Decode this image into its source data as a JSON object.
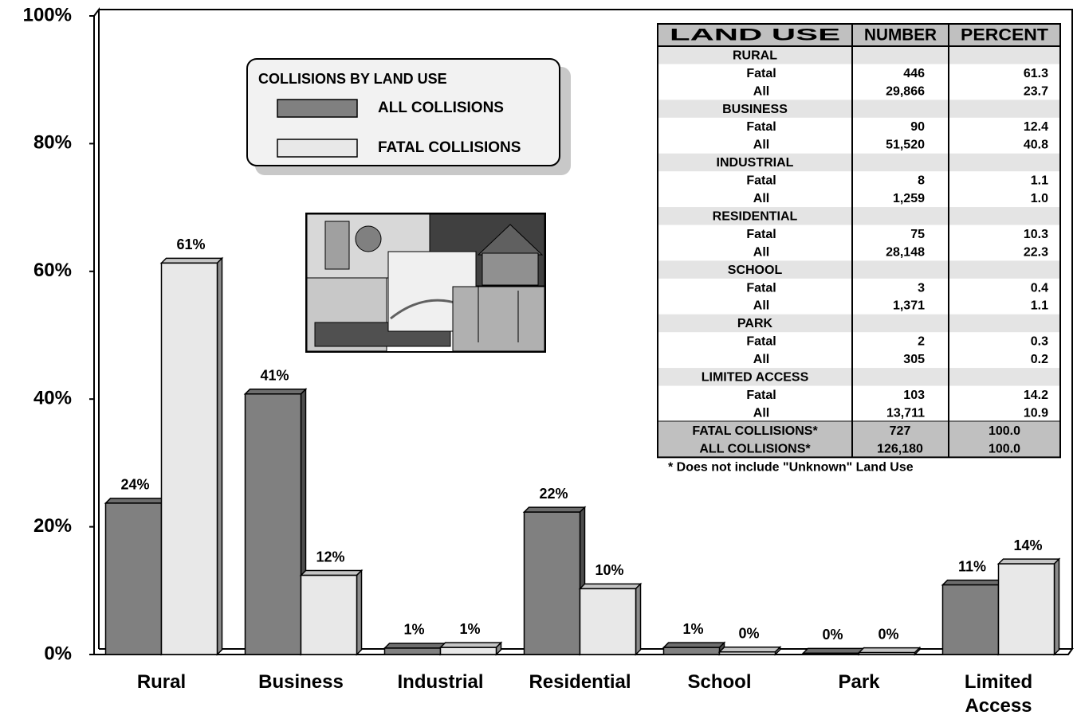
{
  "chart_data": {
    "type": "bar3d",
    "categories": [
      "Rural",
      "Business",
      "Industrial",
      "Residential",
      "School",
      "Park",
      "Limited Access"
    ],
    "series": [
      {
        "name": "ALL COLLISIONS",
        "color": "#808080",
        "values": [
          23.7,
          40.8,
          1.0,
          22.3,
          1.1,
          0.2,
          10.9
        ],
        "value_labels": [
          "24%",
          "41%",
          "1%",
          "22%",
          "1%",
          "0%",
          "11%"
        ]
      },
      {
        "name": "FATAL COLLISIONS",
        "color": "#e8e8e8",
        "values": [
          61.3,
          12.4,
          1.1,
          10.3,
          0.4,
          0.3,
          14.2
        ],
        "value_labels": [
          "61%",
          "12%",
          "1%",
          "10%",
          "0%",
          "0%",
          "14%"
        ]
      }
    ],
    "legend_title": "COLLISIONS BY LAND USE",
    "ylim": [
      0,
      100
    ],
    "yticks": [
      {
        "value": 0,
        "label": "0%"
      },
      {
        "value": 20,
        "label": "20%"
      },
      {
        "value": 40,
        "label": "40%"
      },
      {
        "value": 60,
        "label": "60%"
      },
      {
        "value": 80,
        "label": "80%"
      },
      {
        "value": 100,
        "label": "100%"
      }
    ],
    "grid": false
  },
  "table": {
    "header": [
      "LAND USE",
      "NUMBER",
      "PERCENT"
    ],
    "groups": [
      {
        "name": "RURAL",
        "rows": [
          [
            "Fatal",
            "446",
            "61.3"
          ],
          [
            "All",
            "29,866",
            "23.7"
          ]
        ]
      },
      {
        "name": "BUSINESS",
        "rows": [
          [
            "Fatal",
            "90",
            "12.4"
          ],
          [
            "All",
            "51,520",
            "40.8"
          ]
        ]
      },
      {
        "name": "INDUSTRIAL",
        "rows": [
          [
            "Fatal",
            "8",
            "1.1"
          ],
          [
            "All",
            "1,259",
            "1.0"
          ]
        ]
      },
      {
        "name": "RESIDENTIAL",
        "rows": [
          [
            "Fatal",
            "75",
            "10.3"
          ],
          [
            "All",
            "28,148",
            "22.3"
          ]
        ]
      },
      {
        "name": "SCHOOL",
        "rows": [
          [
            "Fatal",
            "3",
            "0.4"
          ],
          [
            "All",
            "1,371",
            "1.1"
          ]
        ]
      },
      {
        "name": "PARK",
        "rows": [
          [
            "Fatal",
            "2",
            "0.3"
          ],
          [
            "All",
            "305",
            "0.2"
          ]
        ]
      },
      {
        "name": "LIMITED ACCESS",
        "rows": [
          [
            "Fatal",
            "103",
            "14.2"
          ],
          [
            "All",
            "13,711",
            "10.9"
          ]
        ]
      }
    ],
    "totals": [
      [
        "FATAL COLLISIONS*",
        "727",
        "100.0"
      ],
      [
        "ALL COLLISIONS*",
        "126,180",
        "100.0"
      ]
    ],
    "footnote": "* Does not include \"Unknown\" Land Use"
  }
}
